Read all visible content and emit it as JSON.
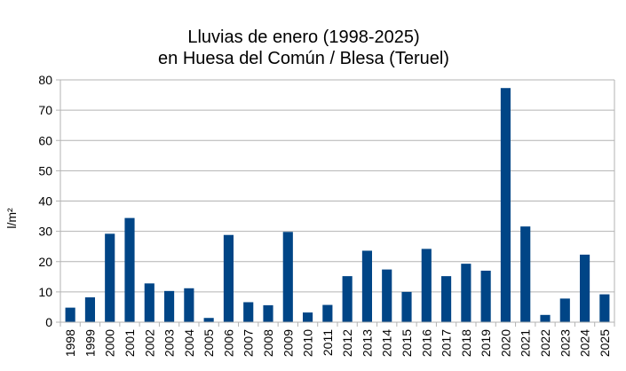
{
  "chart_data": {
    "type": "bar",
    "title": [
      "Lluvias de enero (1998-2025)",
      "en Huesa del Común / Blesa (Teruel)"
    ],
    "xlabel": "",
    "ylabel": "l/m²",
    "ylim": [
      0,
      80
    ],
    "yticks": [
      0,
      10,
      20,
      30,
      40,
      50,
      60,
      70,
      80
    ],
    "grid": true,
    "legend": "none",
    "bar_color": "#004586",
    "categories": [
      "1998",
      "1999",
      "2000",
      "2001",
      "2002",
      "2003",
      "2004",
      "2005",
      "2006",
      "2007",
      "2008",
      "2009",
      "2010",
      "2011",
      "2012",
      "2013",
      "2014",
      "2015",
      "2016",
      "2017",
      "2018",
      "2019",
      "2020",
      "2021",
      "2022",
      "2023",
      "2024",
      "2025"
    ],
    "values": [
      4.8,
      8.2,
      29.2,
      34.4,
      12.8,
      10.3,
      11.2,
      1.4,
      28.8,
      6.6,
      5.6,
      29.8,
      3.2,
      5.7,
      15.2,
      23.6,
      17.4,
      10.0,
      24.2,
      15.2,
      19.3,
      17.0,
      77.3,
      31.6,
      2.4,
      7.8,
      22.3,
      9.2
    ]
  }
}
